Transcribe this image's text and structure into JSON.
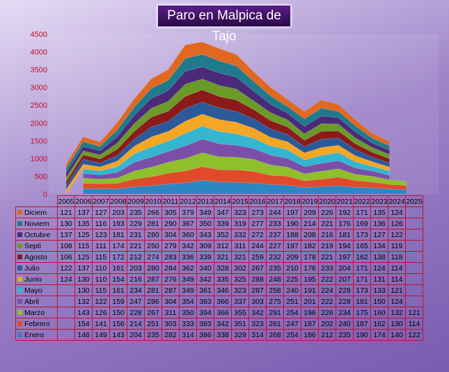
{
  "title": "Paro en Malpica de Tajo",
  "chart_data": {
    "type": "area",
    "stacked": true,
    "title": "Paro en Malpica de Tajo",
    "ylim": [
      0,
      4500
    ],
    "yticks": [
      0,
      500,
      1000,
      1500,
      2000,
      2500,
      3000,
      3500,
      4000,
      4500
    ],
    "categories": [
      "2005",
      "2006",
      "2007",
      "2008",
      "2009",
      "2010",
      "2011",
      "2012",
      "2013",
      "2014",
      "2015",
      "2016",
      "2017",
      "2018",
      "2019",
      "2020",
      "2021",
      "2022",
      "2023",
      "2024",
      "2025"
    ],
    "series": [
      {
        "name": "Enero",
        "color": "#2e86c1",
        "values": [
          null,
          148,
          149,
          143,
          204,
          235,
          282,
          314,
          386,
          338,
          329,
          314,
          268,
          254,
          186,
          212,
          235,
          190,
          174,
          140,
          122
        ]
      },
      {
        "name": "Febrero",
        "color": "#e04a2a",
        "values": [
          null,
          154,
          141,
          156,
          214,
          251,
          303,
          333,
          383,
          342,
          351,
          323,
          261,
          247,
          187,
          202,
          240,
          187,
          162,
          130,
          114
        ]
      },
      {
        "name": "Marzo",
        "color": "#8fbf2a",
        "values": [
          null,
          143,
          126,
          150,
          228,
          267,
          311,
          350,
          394,
          366,
          355,
          342,
          291,
          254,
          196,
          226,
          234,
          175,
          160,
          132,
          121
        ]
      },
      {
        "name": "Abril",
        "color": "#7b4fa8",
        "values": [
          null,
          132,
          122,
          159,
          247,
          286,
          304,
          354,
          383,
          366,
          337,
          303,
          275,
          251,
          201,
          222,
          228,
          181,
          150,
          124,
          null
        ]
      },
      {
        "name": "Mayo",
        "color": "#34b5d0",
        "values": [
          null,
          130,
          115,
          161,
          234,
          281,
          287,
          349,
          361,
          346,
          323,
          287,
          258,
          240,
          191,
          224,
          228,
          173,
          133,
          121,
          null
        ]
      },
      {
        "name": "Junio",
        "color": "#f5a623",
        "values": [
          124,
          130,
          110,
          154,
          216,
          287,
          276,
          349,
          342,
          335,
          325,
          288,
          248,
          225,
          195,
          222,
          207,
          171,
          131,
          114,
          null
        ]
      },
      {
        "name": "Julio",
        "color": "#2a5a9a",
        "values": [
          122,
          137,
          110,
          161,
          203,
          280,
          284,
          362,
          340,
          328,
          302,
          267,
          235,
          210,
          176,
          233,
          204,
          171,
          124,
          114,
          null
        ]
      },
      {
        "name": "Agosto",
        "color": "#8b1a1a",
        "values": [
          106,
          125,
          115,
          172,
          212,
          274,
          283,
          336,
          339,
          321,
          321,
          259,
          232,
          209,
          178,
          221,
          197,
          162,
          138,
          118,
          null
        ]
      },
      {
        "name": "Septi",
        "color": "#6a9a28",
        "values": [
          108,
          115,
          111,
          174,
          221,
          250,
          279,
          342,
          309,
          312,
          311,
          244,
          227,
          197,
          182,
          219,
          194,
          165,
          134,
          119,
          null
        ]
      },
      {
        "name": "Octubre",
        "color": "#4b2a7a",
        "values": [
          137,
          125,
          123,
          181,
          231,
          280,
          304,
          360,
          343,
          352,
          332,
          272,
          237,
          188,
          208,
          216,
          181,
          173,
          127,
          122,
          null
        ]
      },
      {
        "name": "Noviem",
        "color": "#1f7a8c",
        "values": [
          130,
          135,
          116,
          193,
          229,
          281,
          290,
          367,
          350,
          339,
          319,
          277,
          233,
          190,
          214,
          221,
          176,
          169,
          136,
          126,
          null
        ]
      },
      {
        "name": "Diciem",
        "color": "#e06820",
        "values": [
          121,
          137,
          127,
          203,
          235,
          266,
          305,
          379,
          349,
          347,
          323,
          273,
          244,
          197,
          209,
          226,
          192,
          171,
          135,
          124,
          null
        ]
      }
    ]
  }
}
